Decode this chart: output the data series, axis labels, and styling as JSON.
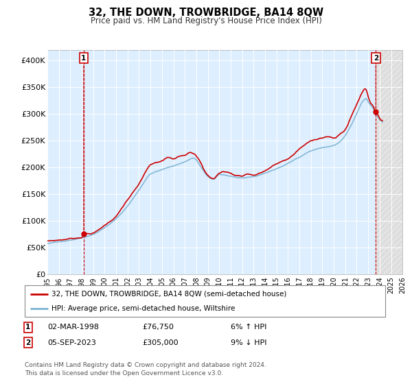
{
  "title": "32, THE DOWN, TROWBRIDGE, BA14 8QW",
  "subtitle": "Price paid vs. HM Land Registry's House Price Index (HPI)",
  "ylabel_ticks": [
    "£0",
    "£50K",
    "£100K",
    "£150K",
    "£200K",
    "£250K",
    "£300K",
    "£350K",
    "£400K"
  ],
  "ytick_values": [
    0,
    50000,
    100000,
    150000,
    200000,
    250000,
    300000,
    350000,
    400000
  ],
  "ylim": [
    0,
    420000
  ],
  "xlim_start": 1995,
  "xlim_end": 2026,
  "legend_line1": "32, THE DOWN, TROWBRIDGE, BA14 8QW (semi-detached house)",
  "legend_line2": "HPI: Average price, semi-detached house, Wiltshire",
  "annotation1_label": "1",
  "annotation1_date": "02-MAR-1998",
  "annotation1_price": "£76,750",
  "annotation1_hpi": "6% ↑ HPI",
  "annotation2_label": "2",
  "annotation2_date": "05-SEP-2023",
  "annotation2_price": "£305,000",
  "annotation2_hpi": "9% ↓ HPI",
  "footer": "Contains HM Land Registry data © Crown copyright and database right 2024.\nThis data is licensed under the Open Government Licence v3.0.",
  "line_color_red": "#cc0000",
  "line_color_blue": "#7bb3d1",
  "bg_plot_color": "#ddeeff",
  "background_color": "#ffffff",
  "grid_color": "#ffffff",
  "sale1_x": 1998.17,
  "sale1_y": 76750,
  "sale2_x": 2023.67,
  "sale2_y": 305000
}
